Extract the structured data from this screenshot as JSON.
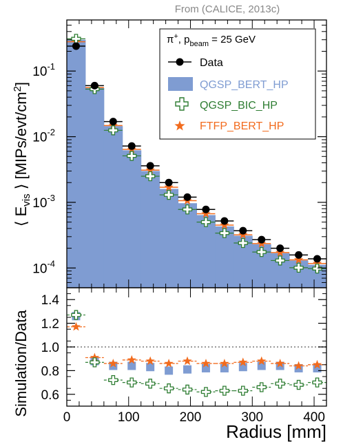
{
  "header": {
    "source_label": "From (CALICE, 2013c)"
  },
  "chart_data": [
    {
      "type": "bar",
      "panel": "top",
      "ylabel_pre": "⟨ E",
      "ylabel_sub": "vis",
      "ylabel_post": " ⟩ [MIPs/evt/cm",
      "ylabel_sup": "2",
      "ylabel_close": "]",
      "yscale": "log",
      "ylim": [
        5e-05,
        0.6
      ],
      "xlim": [
        0,
        420
      ],
      "yticks": [
        "10",
        "10",
        "10",
        "10"
      ],
      "ytick_exponents": [
        "-1",
        "-2",
        "-3",
        "-4"
      ],
      "ytick_values": [
        0.1,
        0.01,
        0.001,
        0.0001
      ],
      "legend": {
        "position": "top-right",
        "header_pi": "π",
        "header_pi_sup": "+",
        "header_p": ", p",
        "header_p_sub": "beam",
        "header_rest": " = 25 GeV",
        "entries": [
          "Data",
          "QGSP_BERT_HP",
          "QGSP_BIC_HP",
          "FTFP_BERT_HP"
        ]
      },
      "bin_edges": [
        0,
        30,
        60,
        90,
        120,
        150,
        180,
        210,
        240,
        270,
        300,
        330,
        360,
        390,
        420
      ],
      "x": [
        15,
        45,
        75,
        105,
        135,
        165,
        195,
        225,
        255,
        285,
        315,
        345,
        375,
        405
      ],
      "series": [
        {
          "name": "Data",
          "color": "#000000",
          "values": [
            0.24,
            0.06,
            0.017,
            0.0072,
            0.0036,
            0.002,
            0.0012,
            0.00078,
            0.00052,
            0.00037,
            0.00027,
            0.0002,
            0.000158,
            0.000138
          ]
        },
        {
          "name": "QGSP_BERT_HP",
          "color": "#7f9cd2",
          "values": [
            0.3,
            0.055,
            0.0145,
            0.0062,
            0.003,
            0.0016,
            0.00097,
            0.00064,
            0.00043,
            0.00031,
            0.00023,
            0.000168,
            0.00013,
            0.000112
          ]
        },
        {
          "name": "QGSP_BIC_HP",
          "color": "#2e7d32",
          "values": [
            0.31,
            0.053,
            0.0125,
            0.0051,
            0.0025,
            0.0013,
            0.00078,
            0.0005,
            0.00034,
            0.00024,
            0.000175,
            0.00013,
            0.000101,
            9.8e-05
          ]
        },
        {
          "name": "FTFP_BERT_HP",
          "color": "#f26b1d",
          "values": [
            0.28,
            0.056,
            0.0148,
            0.0064,
            0.0031,
            0.0017,
            0.00106,
            0.00067,
            0.00045,
            0.00032,
            0.000235,
            0.000172,
            0.000133,
            0.000117
          ]
        }
      ]
    },
    {
      "type": "scatter",
      "panel": "bottom",
      "ylabel": "Simulation/Data",
      "xlabel": "Radius [mm]",
      "xlim": [
        0,
        420
      ],
      "ylim": [
        0.5,
        1.5
      ],
      "yticks": [
        "0.6",
        "0.8",
        "1.0",
        "1.2",
        "1.4"
      ],
      "ytick_values": [
        0.6,
        0.8,
        1.0,
        1.2,
        1.4
      ],
      "xticks": [
        "0",
        "100",
        "200",
        "300",
        "400"
      ],
      "xtick_values": [
        0,
        100,
        200,
        300,
        400
      ],
      "reference_line": 1.0,
      "x": [
        15,
        45,
        75,
        105,
        135,
        165,
        195,
        225,
        255,
        285,
        315,
        345,
        375,
        405
      ],
      "series": [
        {
          "name": "QGSP_BERT_HP",
          "color": "#7f9cd2",
          "values": [
            1.26,
            0.88,
            0.84,
            0.84,
            0.83,
            0.8,
            0.81,
            0.82,
            0.82,
            0.83,
            0.84,
            0.84,
            0.82,
            0.82
          ]
        },
        {
          "name": "QGSP_BIC_HP",
          "color": "#2e7d32",
          "values": [
            1.27,
            0.87,
            0.72,
            0.7,
            0.69,
            0.65,
            0.64,
            0.62,
            0.63,
            0.63,
            0.66,
            0.69,
            0.68,
            0.7
          ]
        },
        {
          "name": "FTFP_BERT_HP",
          "color": "#f26b1d",
          "values": [
            1.17,
            0.91,
            0.86,
            0.89,
            0.88,
            0.86,
            0.88,
            0.86,
            0.86,
            0.87,
            0.88,
            0.86,
            0.84,
            0.85
          ]
        }
      ]
    }
  ]
}
